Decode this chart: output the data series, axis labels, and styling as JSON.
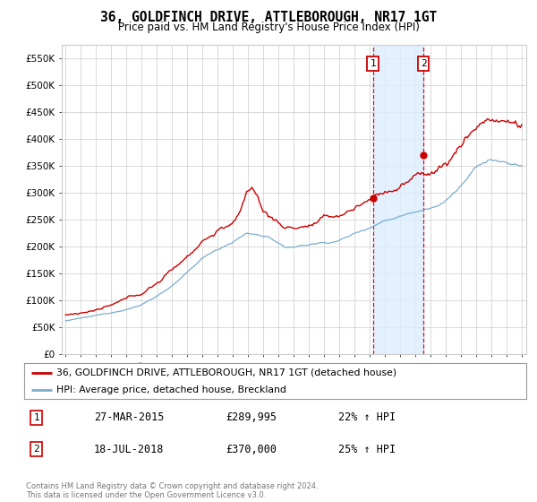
{
  "title": "36, GOLDFINCH DRIVE, ATTLEBOROUGH, NR17 1GT",
  "subtitle": "Price paid vs. HM Land Registry's House Price Index (HPI)",
  "ylabel_ticks": [
    "£0",
    "£50K",
    "£100K",
    "£150K",
    "£200K",
    "£250K",
    "£300K",
    "£350K",
    "£400K",
    "£450K",
    "£500K",
    "£550K"
  ],
  "ytick_values": [
    0,
    50000,
    100000,
    150000,
    200000,
    250000,
    300000,
    350000,
    400000,
    450000,
    500000,
    550000
  ],
  "ylim": [
    0,
    575000
  ],
  "xlim_start": 1994.75,
  "xlim_end": 2025.3,
  "marker1_x": 2015.21,
  "marker2_x": 2018.54,
  "sale1_price_y": 289995,
  "sale2_price_y": 370000,
  "sale1_date": "27-MAR-2015",
  "sale1_price": "£289,995",
  "sale1_hpi": "22% ↑ HPI",
  "sale2_date": "18-JUL-2018",
  "sale2_price": "£370,000",
  "sale2_hpi": "25% ↑ HPI",
  "legend_line1": "36, GOLDFINCH DRIVE, ATTLEBOROUGH, NR17 1GT (detached house)",
  "legend_line2": "HPI: Average price, detached house, Breckland",
  "footnote": "Contains HM Land Registry data © Crown copyright and database right 2024.\nThis data is licensed under the Open Government Licence v3.0.",
  "line_color_red": "#cc0000",
  "line_color_blue": "#7aadcc",
  "bg_color": "#ffffff",
  "grid_color": "#cccccc",
  "shade_color": "#ddeeff"
}
